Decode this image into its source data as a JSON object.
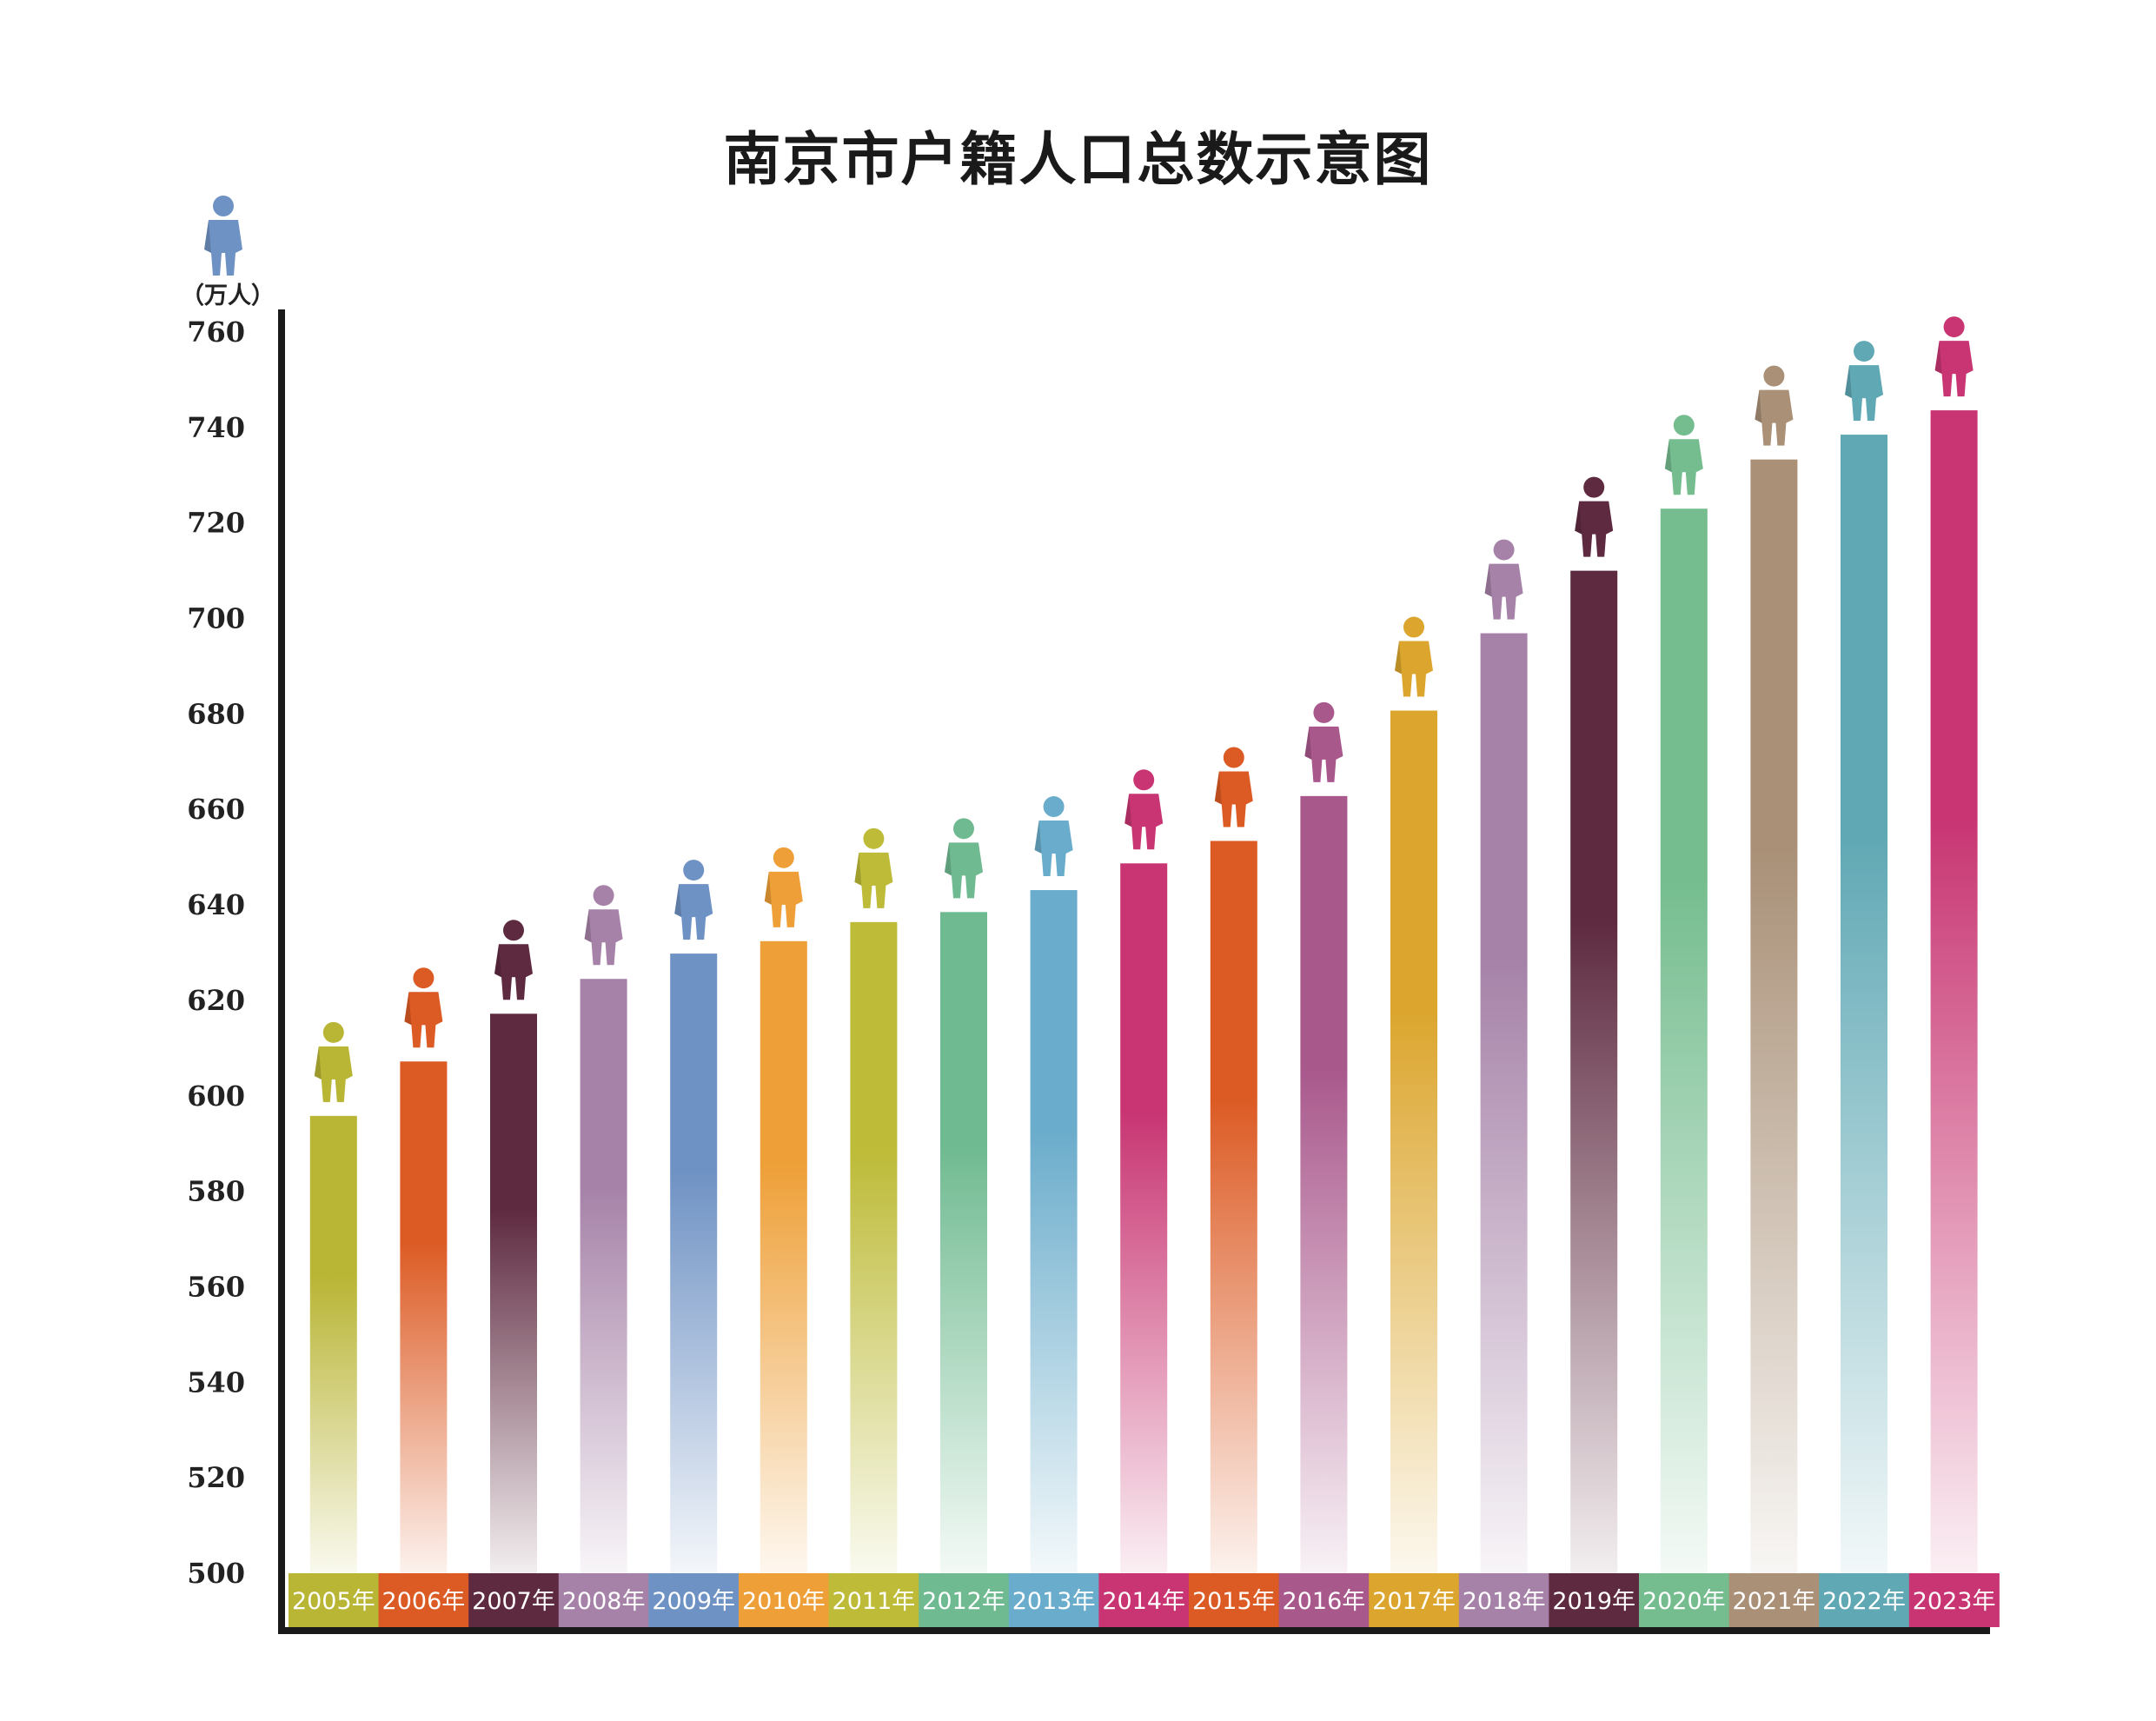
{
  "chart_data": {
    "type": "bar",
    "title": "南京市户籍人口总数示意图",
    "unit_label": "（万人）",
    "ylim": [
      500,
      760
    ],
    "y_ticks": [
      "760",
      "740",
      "720",
      "700",
      "680",
      "660",
      "640",
      "620",
      "600",
      "580",
      "560",
      "540",
      "520",
      "500"
    ],
    "categories": [
      "2005年",
      "2006年",
      "2007年",
      "2008年",
      "2009年",
      "2010年",
      "2011年",
      "2012年",
      "2013年",
      "2014年",
      "2015年",
      "2016年",
      "2017年",
      "2018年",
      "2019年",
      "2020年",
      "2021年",
      "2022年",
      "2023年"
    ],
    "values": [
      595.8,
      607.2,
      617.2,
      624.5,
      629.8,
      632.4,
      636.4,
      638.5,
      643.1,
      648.7,
      653.4,
      662.8,
      680.7,
      696.9,
      710.0,
      723.0,
      733.3,
      738.5,
      743.6
    ],
    "colors": [
      "#b9b535",
      "#dc5a23",
      "#5e2a40",
      "#a682a8",
      "#6f92c4",
      "#ee9f37",
      "#bdbb37",
      "#6fba90",
      "#6aaccb",
      "#c83572",
      "#dc5a23",
      "#a9588c",
      "#dca62e",
      "#a682a8",
      "#5e2a40",
      "#75bd8f",
      "#a99077",
      "#5fa8b4",
      "#c83572"
    ],
    "grid": false,
    "legend": "none"
  }
}
